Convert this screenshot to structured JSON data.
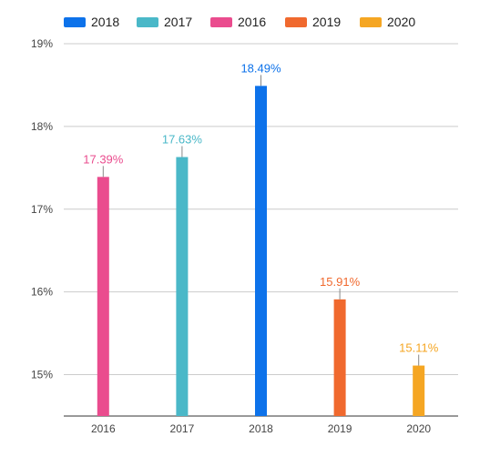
{
  "chart_data": {
    "type": "bar",
    "categories": [
      "2016",
      "2017",
      "2018",
      "2019",
      "2020"
    ],
    "series": [
      {
        "name": "2018",
        "color": "#0d72ea",
        "values": [
          null,
          null,
          18.49,
          null,
          null
        ]
      },
      {
        "name": "2017",
        "color": "#4ab8c8",
        "values": [
          null,
          17.63,
          null,
          null,
          null
        ]
      },
      {
        "name": "2016",
        "color": "#ea4c8e",
        "values": [
          17.39,
          null,
          null,
          null,
          null
        ]
      },
      {
        "name": "2019",
        "color": "#f0692e",
        "values": [
          null,
          null,
          null,
          15.91,
          null
        ]
      },
      {
        "name": "2020",
        "color": "#f5a623",
        "values": [
          null,
          null,
          null,
          null,
          15.11
        ]
      }
    ],
    "data_labels": [
      "17.39%",
      "17.63%",
      "18.49%",
      "15.91%",
      "15.11%"
    ],
    "y_ticks": [
      "15%",
      "16%",
      "17%",
      "18%",
      "19%"
    ],
    "ylim": [
      14.5,
      19
    ],
    "legend_position": "top",
    "grid": true
  }
}
